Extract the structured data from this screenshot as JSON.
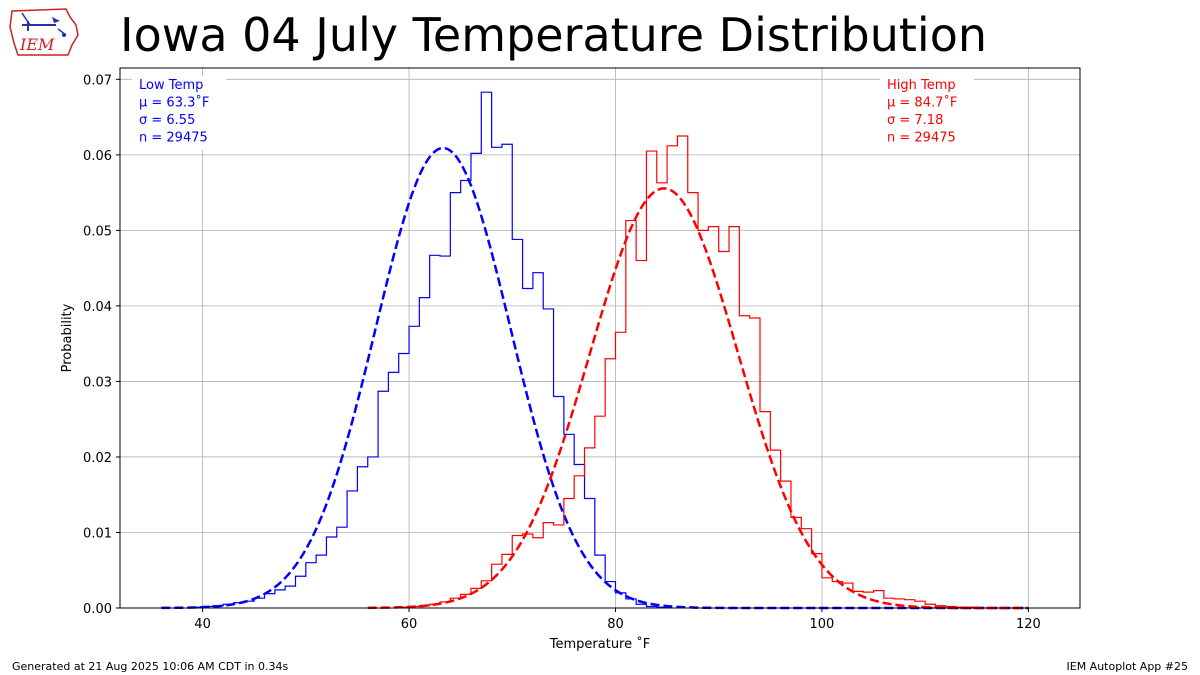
{
  "title": "Iowa 04 July Temperature Distribution",
  "logo": {
    "text": "IEM",
    "color": "#cc2222"
  },
  "footer": {
    "generated": "Generated at 21 Aug 2025 10:06 AM CDT in 0.34s",
    "app": "IEM Autoplot App #25"
  },
  "chart_data": {
    "type": "histogram",
    "xlabel": "Temperature $^\\circ$F",
    "xlabel_display": "Temperature ˚F",
    "ylabel": "Probability",
    "xlim": [
      32,
      125
    ],
    "ylim": [
      0,
      0.0715
    ],
    "xticks": [
      40,
      60,
      80,
      100,
      120
    ],
    "yticks": [
      0.0,
      0.01,
      0.02,
      0.03,
      0.04,
      0.05,
      0.06,
      0.07
    ],
    "grid": true,
    "series": [
      {
        "name": "Low Temp",
        "color": "#0000ff",
        "legend_position": "top-left",
        "stats": {
          "mu": "63.3",
          "sigma": "6.55",
          "n": "29475"
        },
        "stat_labels": [
          "Low Temp",
          "μ = 63.3˚F",
          "σ = 6.55",
          "n = 29475"
        ],
        "mean": 63.3,
        "std": 6.55,
        "curve_range": [
          36,
          120
        ],
        "bins_start": 39,
        "bin_width": 1,
        "values": [
          0.0001,
          0.0002,
          0.0003,
          0.0005,
          0.0007,
          0.0009,
          0.0013,
          0.0019,
          0.0024,
          0.0029,
          0.0042,
          0.006,
          0.007,
          0.0094,
          0.0107,
          0.0155,
          0.0187,
          0.02,
          0.0287,
          0.0312,
          0.0337,
          0.0373,
          0.0411,
          0.0467,
          0.0466,
          0.055,
          0.0566,
          0.0602,
          0.0683,
          0.061,
          0.0614,
          0.0488,
          0.0423,
          0.0444,
          0.0396,
          0.028,
          0.023,
          0.019,
          0.0145,
          0.007,
          0.0035,
          0.002,
          0.0012,
          0.0005,
          0.0002,
          0.0001
        ]
      },
      {
        "name": "High Temp",
        "color": "#ff0000",
        "legend_position": "top-right",
        "stats": {
          "mu": "84.7",
          "sigma": "7.18",
          "n": "29475"
        },
        "stat_labels": [
          "High Temp",
          "μ = 84.7˚F",
          "σ = 7.18",
          "n = 29475"
        ],
        "mean": 84.7,
        "std": 7.18,
        "curve_range": [
          56,
          120
        ],
        "bins_start": 59,
        "bin_width": 1,
        "values": [
          0.0001,
          0.0002,
          0.0003,
          0.0005,
          0.0008,
          0.0013,
          0.0018,
          0.0026,
          0.0036,
          0.0058,
          0.0071,
          0.0096,
          0.0098,
          0.0093,
          0.0113,
          0.011,
          0.0145,
          0.0175,
          0.0212,
          0.0254,
          0.033,
          0.0365,
          0.0513,
          0.046,
          0.0605,
          0.0563,
          0.0612,
          0.0625,
          0.055,
          0.05,
          0.0505,
          0.0472,
          0.0505,
          0.0387,
          0.0384,
          0.026,
          0.0209,
          0.0168,
          0.012,
          0.0105,
          0.0072,
          0.004,
          0.0035,
          0.0033,
          0.0022,
          0.0021,
          0.0023,
          0.0013,
          0.0012,
          0.0011,
          0.0009,
          0.0005,
          0.0003,
          0.0002,
          0.0001,
          0.0001
        ]
      }
    ]
  }
}
